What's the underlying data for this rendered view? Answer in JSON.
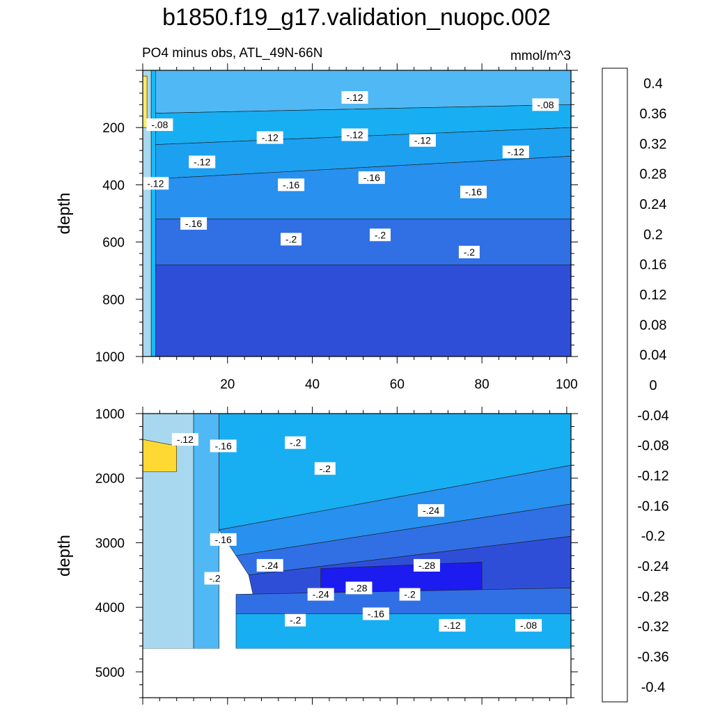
{
  "chart_data": {
    "type": "contour",
    "title": "b1850.f19_g17.validation_nuopc.002",
    "subtitle_left": "PO4 minus obs, ATL_49N-66N",
    "units": "mmol/m^3",
    "colors": {
      "positive": [
        "#fffab0",
        "#ffea6a",
        "#ffd933",
        "#ffc81a",
        "#ffb400",
        "#ffa500",
        "#ff9500",
        "#ff8200",
        "#ff6a00",
        "#ff5200",
        "#ff3a00",
        "#ff1e00",
        "#f00a0a",
        "#e00000",
        "#cc1010",
        "#dc3c3c",
        "#f07878",
        "#ffb0b0"
      ],
      "negative": [
        "#c4e4f4",
        "#a8d8f0",
        "#8ccced",
        "#6ec2f0",
        "#50b8f5",
        "#14bcf8",
        "#18aef2",
        "#1ea0f0",
        "#2890ee",
        "#2c80ea",
        "#3070e4",
        "#3460dc",
        "#2f4ed8",
        "#2a3ce4",
        "#1c1cf0",
        "#2c18f0",
        "#5018e8",
        "#7822e0"
      ]
    },
    "colorbar": {
      "labels": [
        "0.4",
        "0.36",
        "0.32",
        "0.28",
        "0.24",
        "0.2",
        "0.16",
        "0.12",
        "0.08",
        "0.04",
        "0",
        "-0.04",
        "-0.08",
        "-0.12",
        "-0.16",
        "-0.2",
        "-0.24",
        "-0.28",
        "-0.32",
        "-0.36",
        "-0.4"
      ]
    },
    "panels": [
      {
        "name": "upper",
        "xlim": [
          0,
          101
        ],
        "ylim": [
          0,
          1000
        ],
        "y_reversed": true,
        "xticks": [
          "20",
          "40",
          "60",
          "80",
          "100"
        ],
        "xtick_values": [
          20,
          40,
          60,
          80,
          100
        ],
        "yticks": [
          "200",
          "400",
          "600",
          "800",
          "1000"
        ],
        "ytick_values": [
          200,
          400,
          600,
          800,
          1000
        ],
        "ylabel": "depth",
        "bands": [
          {
            "level": -0.02,
            "points": [
              [
                0,
                0
              ],
              [
                2,
                0
              ],
              [
                2,
                1000
              ],
              [
                0,
                1000
              ]
            ]
          },
          {
            "level": 0.02,
            "points": [
              [
                0,
                20
              ],
              [
                1,
                20
              ],
              [
                1,
                200
              ],
              [
                0,
                200
              ]
            ]
          },
          {
            "level": -0.08,
            "points": [
              [
                2,
                0
              ],
              [
                101,
                0
              ],
              [
                101,
                120
              ],
              [
                2,
                150
              ]
            ]
          },
          {
            "level": -0.12,
            "points": [
              [
                2,
                150
              ],
              [
                101,
                120
              ],
              [
                101,
                200
              ],
              [
                2,
                260
              ]
            ]
          },
          {
            "level": -0.14,
            "points": [
              [
                2,
                260
              ],
              [
                101,
                200
              ],
              [
                101,
                300
              ],
              [
                2,
                380
              ]
            ]
          },
          {
            "level": -0.16,
            "points": [
              [
                2,
                380
              ],
              [
                101,
                300
              ],
              [
                101,
                520
              ],
              [
                2,
                520
              ]
            ]
          },
          {
            "level": -0.2,
            "points": [
              [
                2,
                520
              ],
              [
                101,
                520
              ],
              [
                101,
                680
              ],
              [
                2,
                680
              ]
            ]
          },
          {
            "level": -0.24,
            "points": [
              [
                2,
                680
              ],
              [
                101,
                680
              ],
              [
                101,
                1000
              ],
              [
                2,
                1000
              ]
            ]
          },
          {
            "level": -0.1,
            "points": [
              [
                2,
                0
              ],
              [
                3,
                0
              ],
              [
                3,
                1000
              ],
              [
                2,
                1000
              ]
            ]
          }
        ],
        "labels": [
          {
            "text": "-.12",
            "x": 50,
            "y": 95
          },
          {
            "text": "-.08",
            "x": 4,
            "y": 190
          },
          {
            "text": "-.08",
            "x": 95,
            "y": 120
          },
          {
            "text": "-.12",
            "x": 30,
            "y": 235
          },
          {
            "text": "-.12",
            "x": 50,
            "y": 225
          },
          {
            "text": "-.12",
            "x": 66,
            "y": 245
          },
          {
            "text": "-.12",
            "x": 88,
            "y": 285
          },
          {
            "text": "-.12",
            "x": 14,
            "y": 320
          },
          {
            "text": "-.12",
            "x": 3,
            "y": 395
          },
          {
            "text": "-.16",
            "x": 35,
            "y": 400
          },
          {
            "text": "-.16",
            "x": 54,
            "y": 375
          },
          {
            "text": "-.16",
            "x": 78,
            "y": 425
          },
          {
            "text": "-.16",
            "x": 12,
            "y": 535
          },
          {
            "text": "-.2",
            "x": 35,
            "y": 590
          },
          {
            "text": "-.2",
            "x": 56,
            "y": 575
          },
          {
            "text": "-.2",
            "x": 77,
            "y": 635
          }
        ]
      },
      {
        "name": "lower",
        "xlim": [
          0,
          101
        ],
        "ylim": [
          1000,
          5400
        ],
        "y_reversed": true,
        "xticks": [],
        "xtick_values": [
          20,
          40,
          60,
          80,
          100
        ],
        "yticks": [
          "1000",
          "2000",
          "3000",
          "4000",
          "5000"
        ],
        "ytick_values": [
          1000,
          2000,
          3000,
          4000,
          5000
        ],
        "ylabel": "depth",
        "bottom_depth": 4640,
        "bands": [
          {
            "level": -0.02,
            "points": [
              [
                0,
                1000
              ],
              [
                12,
                1000
              ],
              [
                12,
                4640
              ],
              [
                0,
                4640
              ]
            ]
          },
          {
            "level": 0.04,
            "points": [
              [
                0,
                1400
              ],
              [
                8,
                1500
              ],
              [
                8,
                1900
              ],
              [
                0,
                1900
              ]
            ]
          },
          {
            "level": -0.08,
            "points": [
              [
                12,
                1000
              ],
              [
                18,
                1000
              ],
              [
                18,
                4640
              ],
              [
                12,
                4640
              ]
            ]
          },
          {
            "level": -0.12,
            "points": [
              [
                18,
                1000
              ],
              [
                101,
                1000
              ],
              [
                101,
                1800
              ],
              [
                18,
                2800
              ]
            ]
          },
          {
            "level": -0.16,
            "points": [
              [
                18,
                2800
              ],
              [
                101,
                1800
              ],
              [
                101,
                2400
              ],
              [
                22,
                3200
              ]
            ]
          },
          {
            "level": -0.2,
            "points": [
              [
                22,
                3200
              ],
              [
                101,
                2400
              ],
              [
                101,
                2900
              ],
              [
                25,
                3500
              ]
            ]
          },
          {
            "level": -0.24,
            "points": [
              [
                25,
                3500
              ],
              [
                101,
                2900
              ],
              [
                101,
                3700
              ],
              [
                26,
                3800
              ]
            ]
          },
          {
            "level": -0.28,
            "points": [
              [
                42,
                3400
              ],
              [
                80,
                3300
              ],
              [
                80,
                3750
              ],
              [
                42,
                3800
              ]
            ]
          },
          {
            "level": -0.2,
            "points": [
              [
                22,
                3800
              ],
              [
                101,
                3700
              ],
              [
                101,
                4100
              ],
              [
                22,
                4100
              ]
            ]
          },
          {
            "level": -0.12,
            "points": [
              [
                22,
                4100
              ],
              [
                101,
                4100
              ],
              [
                101,
                4640
              ],
              [
                22,
                4640
              ]
            ]
          }
        ],
        "labels": [
          {
            "text": "-.12",
            "x": 10,
            "y": 1400
          },
          {
            "text": "-.16",
            "x": 19,
            "y": 1500
          },
          {
            "text": "-.2",
            "x": 36,
            "y": 1450
          },
          {
            "text": "-.2",
            "x": 43,
            "y": 1850
          },
          {
            "text": "-.24",
            "x": 68,
            "y": 2500
          },
          {
            "text": "-.16",
            "x": 19,
            "y": 2950
          },
          {
            "text": "-.24",
            "x": 30,
            "y": 3350
          },
          {
            "text": "-.2",
            "x": 17,
            "y": 3550
          },
          {
            "text": "-.28",
            "x": 67,
            "y": 3350
          },
          {
            "text": "-.28",
            "x": 51,
            "y": 3700
          },
          {
            "text": "-.24",
            "x": 42,
            "y": 3800
          },
          {
            "text": "-.2",
            "x": 63,
            "y": 3800
          },
          {
            "text": "-.16",
            "x": 55,
            "y": 4100
          },
          {
            "text": "-.2",
            "x": 36,
            "y": 4200
          },
          {
            "text": "-.12",
            "x": 73,
            "y": 4280
          },
          {
            "text": "-.08",
            "x": 91,
            "y": 4280
          }
        ]
      }
    ]
  }
}
